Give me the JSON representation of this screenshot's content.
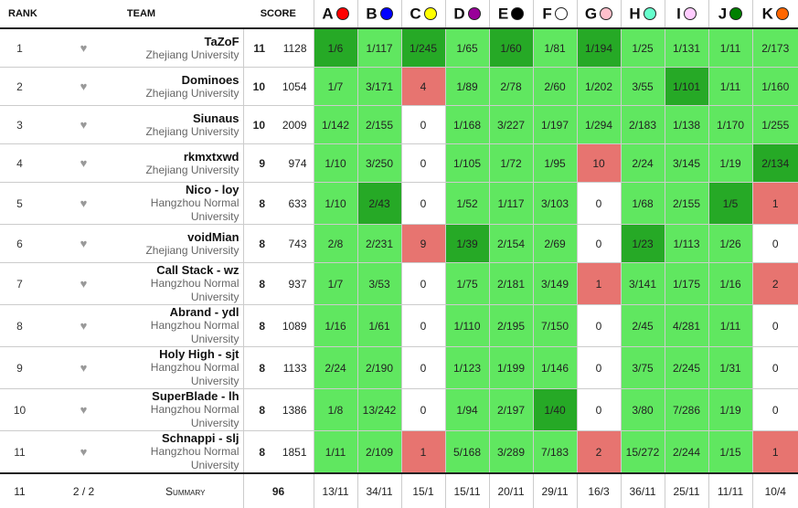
{
  "headers": {
    "rank": "RANK",
    "team": "TEAM",
    "score": "SCORE"
  },
  "problems": [
    {
      "letter": "A",
      "color": "#ff0000"
    },
    {
      "letter": "B",
      "color": "#0000ff"
    },
    {
      "letter": "C",
      "color": "#ffff00"
    },
    {
      "letter": "D",
      "color": "#990099"
    },
    {
      "letter": "E",
      "color": "#000000"
    },
    {
      "letter": "F",
      "color": "#ffffff"
    },
    {
      "letter": "G",
      "color": "#ffc0cb"
    },
    {
      "letter": "H",
      "color": "#66ffcc"
    },
    {
      "letter": "I",
      "color": "#ffccff"
    },
    {
      "letter": "J",
      "color": "#008000"
    },
    {
      "letter": "K",
      "color": "#ff6600"
    }
  ],
  "favorite_glyph": "♥",
  "rows": [
    {
      "rank": "1",
      "name": "TaZoF",
      "uni": "Zhejiang University",
      "solved": "11",
      "penalty": "1128",
      "cells": [
        {
          "t": "1/6",
          "s": "first"
        },
        {
          "t": "1/117",
          "s": "green"
        },
        {
          "t": "1/245",
          "s": "first"
        },
        {
          "t": "1/65",
          "s": "green"
        },
        {
          "t": "1/60",
          "s": "first"
        },
        {
          "t": "1/81",
          "s": "green"
        },
        {
          "t": "1/194",
          "s": "first"
        },
        {
          "t": "1/25",
          "s": "green"
        },
        {
          "t": "1/131",
          "s": "green"
        },
        {
          "t": "1/11",
          "s": "green"
        },
        {
          "t": "2/173",
          "s": "green"
        }
      ]
    },
    {
      "rank": "2",
      "name": "Dominoes",
      "uni": "Zhejiang University",
      "solved": "10",
      "penalty": "1054",
      "cells": [
        {
          "t": "1/7",
          "s": "green"
        },
        {
          "t": "3/171",
          "s": "green"
        },
        {
          "t": "4",
          "s": "red"
        },
        {
          "t": "1/89",
          "s": "green"
        },
        {
          "t": "2/78",
          "s": "green"
        },
        {
          "t": "2/60",
          "s": "green"
        },
        {
          "t": "1/202",
          "s": "green"
        },
        {
          "t": "3/55",
          "s": "green"
        },
        {
          "t": "1/101",
          "s": "first"
        },
        {
          "t": "1/11",
          "s": "green"
        },
        {
          "t": "1/160",
          "s": "green"
        }
      ]
    },
    {
      "rank": "3",
      "name": "Siunaus",
      "uni": "Zhejiang University",
      "solved": "10",
      "penalty": "2009",
      "cells": [
        {
          "t": "1/142",
          "s": "green"
        },
        {
          "t": "2/155",
          "s": "green"
        },
        {
          "t": "0",
          "s": "none"
        },
        {
          "t": "1/168",
          "s": "green"
        },
        {
          "t": "3/227",
          "s": "green"
        },
        {
          "t": "1/197",
          "s": "green"
        },
        {
          "t": "1/294",
          "s": "green"
        },
        {
          "t": "2/183",
          "s": "green"
        },
        {
          "t": "1/138",
          "s": "green"
        },
        {
          "t": "1/170",
          "s": "green"
        },
        {
          "t": "1/255",
          "s": "green"
        }
      ]
    },
    {
      "rank": "4",
      "name": "rkmxtxwd",
      "uni": "Zhejiang University",
      "solved": "9",
      "penalty": "974",
      "cells": [
        {
          "t": "1/10",
          "s": "green"
        },
        {
          "t": "3/250",
          "s": "green"
        },
        {
          "t": "0",
          "s": "none"
        },
        {
          "t": "1/105",
          "s": "green"
        },
        {
          "t": "1/72",
          "s": "green"
        },
        {
          "t": "1/95",
          "s": "green"
        },
        {
          "t": "10",
          "s": "red"
        },
        {
          "t": "2/24",
          "s": "green"
        },
        {
          "t": "3/145",
          "s": "green"
        },
        {
          "t": "1/19",
          "s": "green"
        },
        {
          "t": "2/134",
          "s": "first"
        }
      ]
    },
    {
      "rank": "5",
      "name": "Nico - loy",
      "uni": "Hangzhou Normal University",
      "solved": "8",
      "penalty": "633",
      "cells": [
        {
          "t": "1/10",
          "s": "green"
        },
        {
          "t": "2/43",
          "s": "first"
        },
        {
          "t": "0",
          "s": "none"
        },
        {
          "t": "1/52",
          "s": "green"
        },
        {
          "t": "1/117",
          "s": "green"
        },
        {
          "t": "3/103",
          "s": "green"
        },
        {
          "t": "0",
          "s": "none"
        },
        {
          "t": "1/68",
          "s": "green"
        },
        {
          "t": "2/155",
          "s": "green"
        },
        {
          "t": "1/5",
          "s": "first"
        },
        {
          "t": "1",
          "s": "red"
        }
      ]
    },
    {
      "rank": "6",
      "name": "voidMian",
      "uni": "Zhejiang University",
      "solved": "8",
      "penalty": "743",
      "cells": [
        {
          "t": "2/8",
          "s": "green"
        },
        {
          "t": "2/231",
          "s": "green"
        },
        {
          "t": "9",
          "s": "red"
        },
        {
          "t": "1/39",
          "s": "first"
        },
        {
          "t": "2/154",
          "s": "green"
        },
        {
          "t": "2/69",
          "s": "green"
        },
        {
          "t": "0",
          "s": "none"
        },
        {
          "t": "1/23",
          "s": "first"
        },
        {
          "t": "1/113",
          "s": "green"
        },
        {
          "t": "1/26",
          "s": "green"
        },
        {
          "t": "0",
          "s": "none"
        }
      ]
    },
    {
      "rank": "7",
      "name": "Call Stack - wz",
      "uni": "Hangzhou Normal University",
      "solved": "8",
      "penalty": "937",
      "cells": [
        {
          "t": "1/7",
          "s": "green"
        },
        {
          "t": "3/53",
          "s": "green"
        },
        {
          "t": "0",
          "s": "none"
        },
        {
          "t": "1/75",
          "s": "green"
        },
        {
          "t": "2/181",
          "s": "green"
        },
        {
          "t": "3/149",
          "s": "green"
        },
        {
          "t": "1",
          "s": "red"
        },
        {
          "t": "3/141",
          "s": "green"
        },
        {
          "t": "1/175",
          "s": "green"
        },
        {
          "t": "1/16",
          "s": "green"
        },
        {
          "t": "2",
          "s": "red"
        }
      ]
    },
    {
      "rank": "8",
      "name": "Abrand - ydl",
      "uni": "Hangzhou Normal University",
      "solved": "8",
      "penalty": "1089",
      "cells": [
        {
          "t": "1/16",
          "s": "green"
        },
        {
          "t": "1/61",
          "s": "green"
        },
        {
          "t": "0",
          "s": "none"
        },
        {
          "t": "1/110",
          "s": "green"
        },
        {
          "t": "2/195",
          "s": "green"
        },
        {
          "t": "7/150",
          "s": "green"
        },
        {
          "t": "0",
          "s": "none"
        },
        {
          "t": "2/45",
          "s": "green"
        },
        {
          "t": "4/281",
          "s": "green"
        },
        {
          "t": "1/11",
          "s": "green"
        },
        {
          "t": "0",
          "s": "none"
        }
      ]
    },
    {
      "rank": "9",
      "name": "Holy High - sjt",
      "uni": "Hangzhou Normal University",
      "solved": "8",
      "penalty": "1133",
      "cells": [
        {
          "t": "2/24",
          "s": "green"
        },
        {
          "t": "2/190",
          "s": "green"
        },
        {
          "t": "0",
          "s": "none"
        },
        {
          "t": "1/123",
          "s": "green"
        },
        {
          "t": "1/199",
          "s": "green"
        },
        {
          "t": "1/146",
          "s": "green"
        },
        {
          "t": "0",
          "s": "none"
        },
        {
          "t": "3/75",
          "s": "green"
        },
        {
          "t": "2/245",
          "s": "green"
        },
        {
          "t": "1/31",
          "s": "green"
        },
        {
          "t": "0",
          "s": "none"
        }
      ]
    },
    {
      "rank": "10",
      "name": "SuperBlade - lh",
      "uni": "Hangzhou Normal University",
      "solved": "8",
      "penalty": "1386",
      "cells": [
        {
          "t": "1/8",
          "s": "green"
        },
        {
          "t": "13/242",
          "s": "green"
        },
        {
          "t": "0",
          "s": "none"
        },
        {
          "t": "1/94",
          "s": "green"
        },
        {
          "t": "2/197",
          "s": "green"
        },
        {
          "t": "1/40",
          "s": "first"
        },
        {
          "t": "0",
          "s": "none"
        },
        {
          "t": "3/80",
          "s": "green"
        },
        {
          "t": "7/286",
          "s": "green"
        },
        {
          "t": "1/19",
          "s": "green"
        },
        {
          "t": "0",
          "s": "none"
        }
      ]
    },
    {
      "rank": "11",
      "name": "Schnappi - slj",
      "uni": "Hangzhou Normal University",
      "solved": "8",
      "penalty": "1851",
      "cells": [
        {
          "t": "1/11",
          "s": "green"
        },
        {
          "t": "2/109",
          "s": "green"
        },
        {
          "t": "1",
          "s": "red"
        },
        {
          "t": "5/168",
          "s": "green"
        },
        {
          "t": "3/289",
          "s": "green"
        },
        {
          "t": "7/183",
          "s": "green"
        },
        {
          "t": "2",
          "s": "red"
        },
        {
          "t": "15/272",
          "s": "green"
        },
        {
          "t": "2/244",
          "s": "green"
        },
        {
          "t": "1/15",
          "s": "green"
        },
        {
          "t": "1",
          "s": "red"
        }
      ]
    }
  ],
  "summary": {
    "count": "11",
    "page": "2 / 2",
    "label": "Summary",
    "solved": "96",
    "cells": [
      "13/11",
      "34/11",
      "15/1",
      "15/11",
      "20/11",
      "29/11",
      "16/3",
      "36/11",
      "25/11",
      "11/11",
      "10/4"
    ]
  }
}
